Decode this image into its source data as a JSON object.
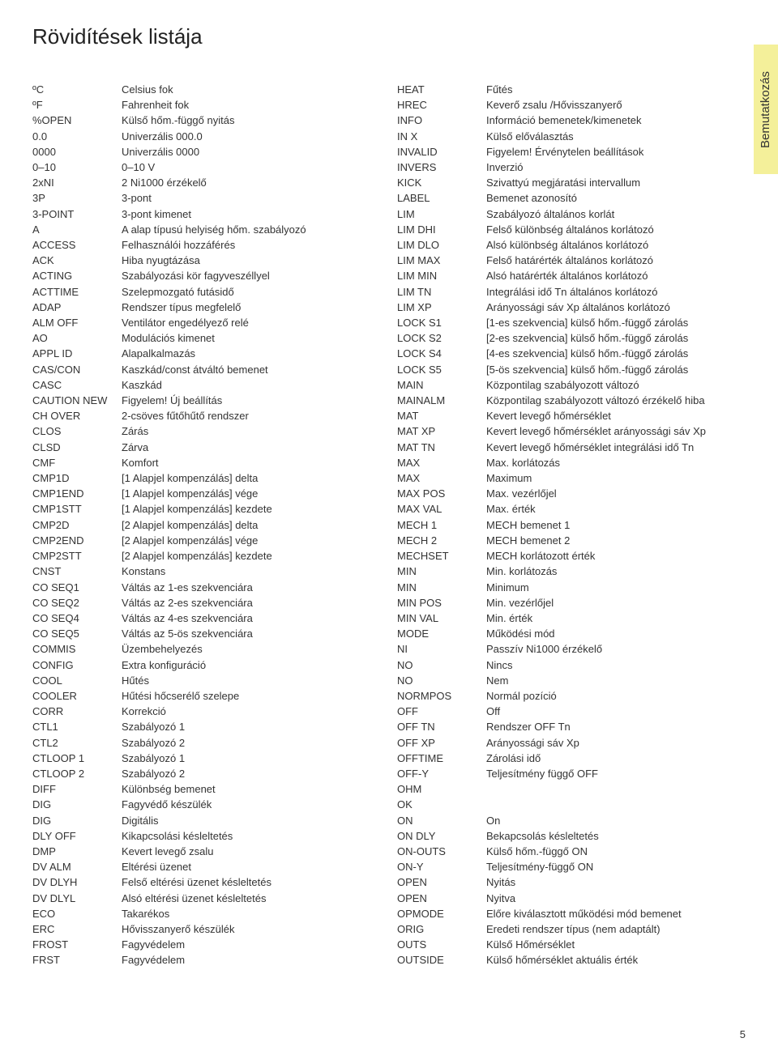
{
  "title": "Rövidítések listája",
  "sideTab": "Bemutatkozás",
  "pageNumber": "5",
  "leftCol": [
    {
      "abbr": "ºC",
      "desc": "Celsius fok"
    },
    {
      "abbr": "ºF",
      "desc": "Fahrenheit fok"
    },
    {
      "abbr": "%OPEN",
      "desc": "Külső hőm.-függő nyitás"
    },
    {
      "abbr": "0.0",
      "desc": "Univerzális 000.0"
    },
    {
      "abbr": "0000",
      "desc": "Univerzális 0000"
    },
    {
      "abbr": "0–10",
      "desc": "0–10 V"
    },
    {
      "abbr": "2xNI",
      "desc": "2 Ni1000 érzékelő"
    },
    {
      "abbr": "3P",
      "desc": "3-pont"
    },
    {
      "abbr": "3-POINT",
      "desc": "3-pont kimenet"
    },
    {
      "abbr": "A",
      "desc": "A alap típusú helyiség hőm. szabályozó"
    },
    {
      "abbr": "ACCESS",
      "desc": "Felhasználói hozzáférés"
    },
    {
      "abbr": "ACK",
      "desc": "Hiba nyugtázása"
    },
    {
      "abbr": "ACTING",
      "desc": "Szabályozási kör fagyveszéllyel"
    },
    {
      "abbr": "ACTTIME",
      "desc": "Szelepmozgató futásidő"
    },
    {
      "abbr": "ADAP",
      "desc": "Rendszer típus megfelelő"
    },
    {
      "abbr": "ALM OFF",
      "desc": "Ventilátor engedélyező relé"
    },
    {
      "abbr": "AO",
      "desc": "Modulációs kimenet"
    },
    {
      "abbr": "APPL ID",
      "desc": "Alapalkalmazás"
    },
    {
      "abbr": "CAS/CON",
      "desc": "Kaszkád/const átváltó bemenet"
    },
    {
      "abbr": "CASC",
      "desc": "Kaszkád"
    },
    {
      "abbr": "CAUTION NEW",
      "desc": "Figyelem! Új beállítás"
    },
    {
      "abbr": "CH OVER",
      "desc": "2-csöves fűtőhűtő rendszer"
    },
    {
      "abbr": "CLOS",
      "desc": "Zárás"
    },
    {
      "abbr": "CLSD",
      "desc": "Zárva"
    },
    {
      "abbr": "CMF",
      "desc": "Komfort"
    },
    {
      "abbr": "CMP1D",
      "desc": "[1 Alapjel kompenzálás] delta"
    },
    {
      "abbr": "CMP1END",
      "desc": "[1 Alapjel kompenzálás] vége"
    },
    {
      "abbr": "CMP1STT",
      "desc": "[1 Alapjel kompenzálás] kezdete"
    },
    {
      "abbr": "CMP2D",
      "desc": "[2 Alapjel kompenzálás] delta"
    },
    {
      "abbr": "CMP2END",
      "desc": "[2 Alapjel kompenzálás] vége"
    },
    {
      "abbr": "CMP2STT",
      "desc": "[2 Alapjel kompenzálás] kezdete"
    },
    {
      "abbr": "CNST",
      "desc": "Konstans"
    },
    {
      "abbr": "CO SEQ1",
      "desc": "Váltás az 1-es szekvenciára"
    },
    {
      "abbr": "CO SEQ2",
      "desc": "Váltás az 2-es szekvenciára"
    },
    {
      "abbr": "CO SEQ4",
      "desc": "Váltás az 4-es szekvenciára"
    },
    {
      "abbr": "CO SEQ5",
      "desc": "Váltás az 5-ös szekvenciára"
    },
    {
      "abbr": "COMMIS",
      "desc": "Üzembehelyezés"
    },
    {
      "abbr": "CONFIG",
      "desc": "Extra konfiguráció"
    },
    {
      "abbr": "COOL",
      "desc": "Hűtés"
    },
    {
      "abbr": "COOLER",
      "desc": "Hűtési hőcserélő szelepe"
    },
    {
      "abbr": "CORR",
      "desc": "Korrekció"
    },
    {
      "abbr": "CTL1",
      "desc": "Szabályozó 1"
    },
    {
      "abbr": "CTL2",
      "desc": "Szabályozó 2"
    },
    {
      "abbr": "CTLOOP 1",
      "desc": "Szabályozó 1"
    },
    {
      "abbr": "CTLOOP 2",
      "desc": "Szabályozó 2"
    },
    {
      "abbr": "DIFF",
      "desc": "Különbség bemenet"
    },
    {
      "abbr": "DIG",
      "desc": "Fagyvédő készülék"
    },
    {
      "abbr": "DIG",
      "desc": "Digitális"
    },
    {
      "abbr": "DLY OFF",
      "desc": "Kikapcsolási késleltetés"
    },
    {
      "abbr": "DMP",
      "desc": "Kevert levegő zsalu"
    },
    {
      "abbr": "DV ALM",
      "desc": "Eltérési üzenet"
    },
    {
      "abbr": "DV DLYH",
      "desc": "Felső eltérési üzenet késleltetés"
    },
    {
      "abbr": "DV DLYL",
      "desc": "Alsó eltérési üzenet késleltetés"
    },
    {
      "abbr": "ECO",
      "desc": "Takarékos"
    },
    {
      "abbr": "ERC",
      "desc": "Hővisszanyerő készülék"
    },
    {
      "abbr": "FROST",
      "desc": "Fagyvédelem"
    },
    {
      "abbr": "FRST",
      "desc": "Fagyvédelem"
    }
  ],
  "rightCol": [
    {
      "abbr": "HEAT",
      "desc": "Fűtés"
    },
    {
      "abbr": "HREC",
      "desc": "Keverő zsalu /Hővisszanyerő"
    },
    {
      "abbr": "INFO",
      "desc": "Információ bemenetek/kimenetek"
    },
    {
      "abbr": "IN X",
      "desc": "Külső előválasztás"
    },
    {
      "abbr": "INVALID",
      "desc": "Figyelem! Érvénytelen beállítások"
    },
    {
      "abbr": "INVERS",
      "desc": "Inverzió"
    },
    {
      "abbr": "KICK",
      "desc": "Szivattyú megjáratási intervallum"
    },
    {
      "abbr": "LABEL",
      "desc": "Bemenet azonosító"
    },
    {
      "abbr": "LIM",
      "desc": "Szabályozó általános korlát"
    },
    {
      "abbr": "LIM DHI",
      "desc": "Felső különbség általános korlátozó"
    },
    {
      "abbr": "LIM DLO",
      "desc": "Alsó különbség általános korlátozó"
    },
    {
      "abbr": "LIM MAX",
      "desc": "Felső határérték általános korlátozó"
    },
    {
      "abbr": "LIM MIN",
      "desc": "Alsó határérték általános korlátozó"
    },
    {
      "abbr": "LIM TN",
      "desc": "Integrálási idő Tn általános korlátozó"
    },
    {
      "abbr": "LIM XP",
      "desc": "Arányossági sáv Xp általános korlátozó"
    },
    {
      "abbr": "LOCK S1",
      "desc": "[1-es szekvencia] külső hőm.-függő zárolás"
    },
    {
      "abbr": "LOCK S2",
      "desc": "[2-es szekvencia] külső hőm.-függő zárolás"
    },
    {
      "abbr": "LOCK S4",
      "desc": "[4-es szekvencia] külső hőm.-függő zárolás"
    },
    {
      "abbr": "LOCK S5",
      "desc": "[5-ös szekvencia] külső hőm.-függő zárolás"
    },
    {
      "abbr": "MAIN",
      "desc": "Központilag szabályozott változó"
    },
    {
      "abbr": "MAINALM",
      "desc": "Központilag szabályozott változó érzékelő hiba"
    },
    {
      "abbr": "MAT",
      "desc": "Kevert levegő hőmérséklet"
    },
    {
      "abbr": "MAT XP",
      "desc": "Kevert levegő hőmérséklet arányossági sáv Xp"
    },
    {
      "abbr": "MAT TN",
      "desc": "Kevert levegő hőmérséklet integrálási idő Tn"
    },
    {
      "abbr": "MAX",
      "desc": "Max. korlátozás"
    },
    {
      "abbr": "MAX",
      "desc": "Maximum"
    },
    {
      "abbr": "MAX POS",
      "desc": "Max. vezérlőjel"
    },
    {
      "abbr": "MAX VAL",
      "desc": "Max. érték"
    },
    {
      "abbr": "MECH 1",
      "desc": "MECH bemenet 1"
    },
    {
      "abbr": "MECH 2",
      "desc": "MECH bemenet 2"
    },
    {
      "abbr": "MECHSET",
      "desc": "MECH korlátozott érték"
    },
    {
      "abbr": "MIN",
      "desc": "Min. korlátozás"
    },
    {
      "abbr": "MIN",
      "desc": "Minimum"
    },
    {
      "abbr": "MIN POS",
      "desc": "Min. vezérlőjel"
    },
    {
      "abbr": "MIN VAL",
      "desc": "Min. érték"
    },
    {
      "abbr": "MODE",
      "desc": "Működési mód"
    },
    {
      "abbr": "NI",
      "desc": "Passzív Ni1000 érzékelő"
    },
    {
      "abbr": "NO",
      "desc": "Nincs"
    },
    {
      "abbr": "NO",
      "desc": "Nem"
    },
    {
      "abbr": "NORMPOS",
      "desc": "Normál pozíció"
    },
    {
      "abbr": "OFF",
      "desc": "Off"
    },
    {
      "abbr": "OFF TN",
      "desc": "Rendszer OFF Tn"
    },
    {
      "abbr": "OFF XP",
      "desc": "Arányossági sáv Xp"
    },
    {
      "abbr": "OFFTIME",
      "desc": "Zárolási idő"
    },
    {
      "abbr": "OFF-Y",
      "desc": "Teljesítmény függő OFF"
    },
    {
      "abbr": "OHM",
      "desc": ""
    },
    {
      "abbr": "OK",
      "desc": ""
    },
    {
      "abbr": "ON",
      "desc": "On"
    },
    {
      "abbr": "ON DLY",
      "desc": "Bekapcsolás késleltetés"
    },
    {
      "abbr": "ON-OUTS",
      "desc": "Külső hőm.-függő ON"
    },
    {
      "abbr": "ON-Y",
      "desc": "Teljesítmény-függő ON"
    },
    {
      "abbr": "OPEN",
      "desc": "Nyitás"
    },
    {
      "abbr": "OPEN",
      "desc": "Nyitva"
    },
    {
      "abbr": "OPMODE",
      "desc": "Előre kiválasztott működési mód bemenet"
    },
    {
      "abbr": "ORIG",
      "desc": "Eredeti rendszer típus (nem adaptált)"
    },
    {
      "abbr": "OUTS",
      "desc": "Külső Hőmérséklet"
    },
    {
      "abbr": "OUTSIDE",
      "desc": "Külső hőmérséklet aktuális érték"
    }
  ]
}
